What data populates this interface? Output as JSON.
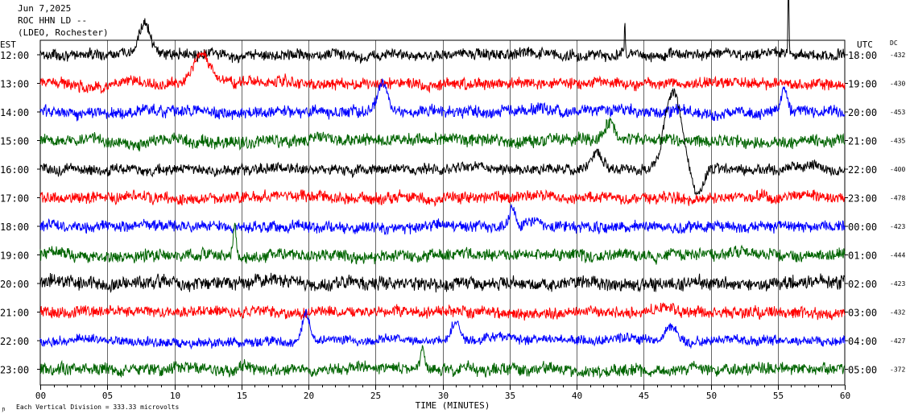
{
  "header": {
    "date": "Jun 7,2025",
    "station": "ROC HHN LD --",
    "network": "(LDEO, Rochester)"
  },
  "left_axis_label": "EST",
  "right_axis_label": "UTC",
  "dc_label": "DC",
  "footer": {
    "scale_note": "Each Vertical Division =  333.33 microvolts"
  },
  "colors": {
    "trace_cycle": [
      "#000000",
      "#ff0000",
      "#0000ff",
      "#006400"
    ],
    "grid": "#000000",
    "background": "#ffffff"
  },
  "chart_data": {
    "type": "line",
    "title": "",
    "xlabel": "TIME (MINUTES)",
    "ylabel": "",
    "xlim": [
      0,
      60
    ],
    "x_ticks": [
      "00",
      "05",
      "10",
      "15",
      "20",
      "25",
      "30",
      "35",
      "40",
      "45",
      "50",
      "55",
      "60"
    ],
    "grid": true,
    "rows": [
      {
        "est": "12:00",
        "utc": "18:00",
        "dc": "-432",
        "color": "#000000",
        "noise": 0.9,
        "events": [
          {
            "t": 7.8,
            "amp": 0.7,
            "w": 0.6
          },
          {
            "t": 55.8,
            "amp": 1.6,
            "w": 0.05
          },
          {
            "t": 43.6,
            "amp": 0.8,
            "w": 0.05
          }
        ]
      },
      {
        "est": "13:00",
        "utc": "19:00",
        "dc": "-430",
        "color": "#ff0000",
        "noise": 0.95,
        "events": [
          {
            "t": 12.0,
            "amp": 0.6,
            "w": 0.8
          }
        ]
      },
      {
        "est": "14:00",
        "utc": "20:00",
        "dc": "-453",
        "color": "#0000ff",
        "noise": 1.0,
        "events": [
          {
            "t": 25.5,
            "amp": 0.6,
            "w": 0.5
          },
          {
            "t": 55.5,
            "amp": 0.5,
            "w": 0.3
          }
        ]
      },
      {
        "est": "15:00",
        "utc": "21:00",
        "dc": "-435",
        "color": "#006400",
        "noise": 1.05,
        "events": [
          {
            "t": 42.5,
            "amp": 0.3,
            "w": 0.5
          }
        ]
      },
      {
        "est": "16:00",
        "utc": "22:00",
        "dc": "-400",
        "color": "#000000",
        "noise": 0.9,
        "events": [
          {
            "t": 47.2,
            "amp": 1.6,
            "w": 0.9
          },
          {
            "t": 49.0,
            "amp": -0.5,
            "w": 0.6
          },
          {
            "t": 41.5,
            "amp": 0.3,
            "w": 0.6
          }
        ]
      },
      {
        "est": "17:00",
        "utc": "23:00",
        "dc": "-478",
        "color": "#ff0000",
        "noise": 0.95,
        "events": []
      },
      {
        "est": "18:00",
        "utc": "00:00",
        "dc": "-423",
        "color": "#0000ff",
        "noise": 0.95,
        "events": [
          {
            "t": 35.2,
            "amp": 0.4,
            "w": 0.3
          }
        ]
      },
      {
        "est": "19:00",
        "utc": "01:00",
        "dc": "-444",
        "color": "#006400",
        "noise": 1.0,
        "events": [
          {
            "t": 14.5,
            "amp": 0.6,
            "w": 0.15
          }
        ]
      },
      {
        "est": "20:00",
        "utc": "02:00",
        "dc": "-423",
        "color": "#000000",
        "noise": 1.15,
        "events": []
      },
      {
        "est": "21:00",
        "utc": "03:00",
        "dc": "-432",
        "color": "#ff0000",
        "noise": 0.95,
        "events": []
      },
      {
        "est": "22:00",
        "utc": "04:00",
        "dc": "-427",
        "color": "#0000ff",
        "noise": 0.8,
        "events": [
          {
            "t": 19.8,
            "amp": 0.6,
            "w": 0.4
          },
          {
            "t": 31.0,
            "amp": 0.4,
            "w": 0.5
          },
          {
            "t": 47.0,
            "amp": 0.3,
            "w": 0.6
          }
        ]
      },
      {
        "est": "23:00",
        "utc": "05:00",
        "dc": "-372",
        "color": "#006400",
        "noise": 1.0,
        "events": [
          {
            "t": 28.5,
            "amp": 0.5,
            "w": 0.2
          }
        ]
      }
    ]
  }
}
